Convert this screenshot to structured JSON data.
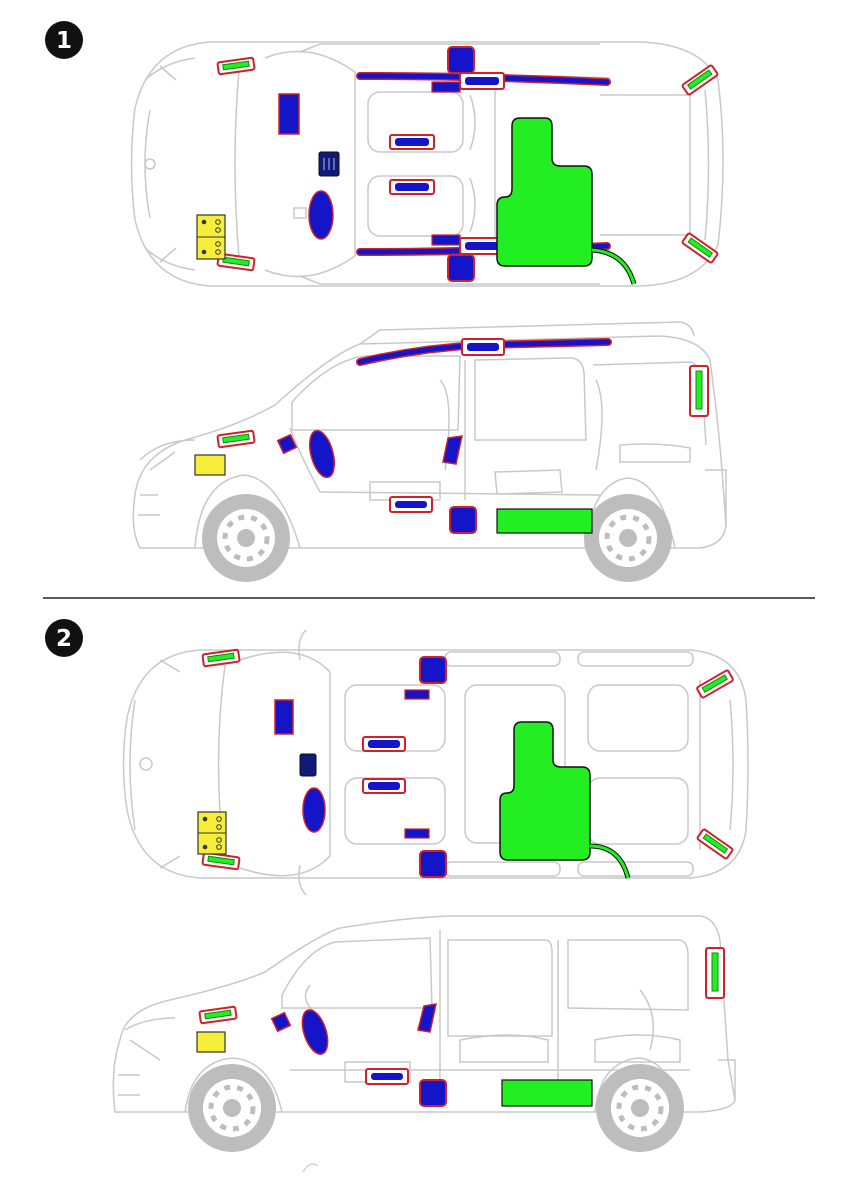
{
  "sections": [
    {
      "number": "1",
      "model": "van-short"
    },
    {
      "number": "2",
      "model": "van-long"
    }
  ],
  "colors": {
    "outline": "#c8c8c8",
    "outline_dark": "#a9a9a9",
    "wheel": "#bdbdbd",
    "blue": "#1414c8",
    "navy": "#101a78",
    "red": "#d0202a",
    "green": "#22ee22",
    "dark_green": "#118811",
    "yellow": "#f6ee38",
    "black": "#111111",
    "divider": "#222222"
  },
  "component_legend": {
    "airbag-module": "blue",
    "curtain-airbag": "blue",
    "control-unit": "navy",
    "battery": "yellow",
    "high-voltage-component": "green",
    "pretensioner": "red-outline",
    "crash-sensor": "green-on-red"
  }
}
